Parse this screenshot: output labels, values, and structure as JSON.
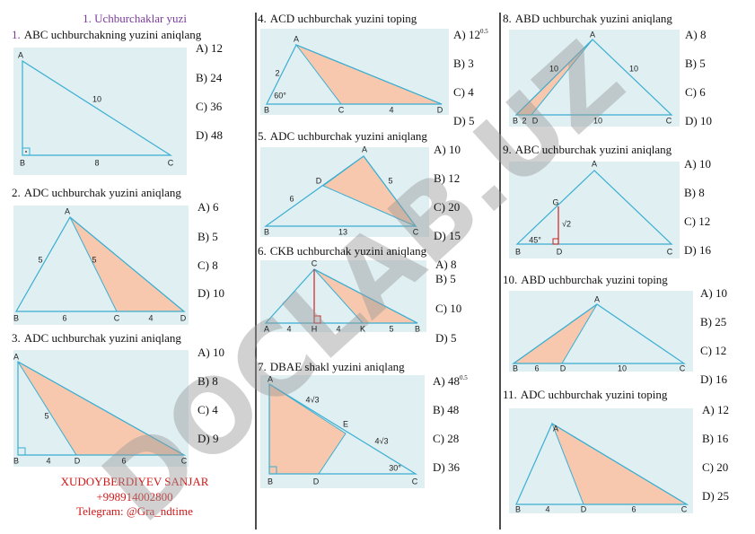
{
  "header": {
    "title": "1. Uchburchaklar yuzi"
  },
  "problems": [
    {
      "number": "1.",
      "question": "ABC uchburchakning yuzini aniqlang",
      "options": [
        "A) 12",
        "B) 24",
        "C) 36",
        "D) 48"
      ],
      "figure_labels": [
        "A",
        "B",
        "C",
        "10",
        "8"
      ]
    },
    {
      "number": "2.",
      "question": "ADC uchburchak yuzini aniqlang",
      "options": [
        "A) 6",
        "B) 5",
        "C) 8",
        "D) 10"
      ],
      "figure_labels": [
        "A",
        "B",
        "C",
        "D",
        "5",
        "5",
        "6",
        "4"
      ]
    },
    {
      "number": "3.",
      "question": "ADC uchburchak yuzini aniqlang",
      "options": [
        "A) 10",
        "B) 8",
        "C) 4",
        "D) 9"
      ],
      "figure_labels": [
        "A",
        "B",
        "D",
        "C",
        "5",
        "4",
        "6"
      ]
    },
    {
      "number": "4.",
      "question": "ACD uchburchak yuzini toping",
      "options": [
        {
          "text": "A) 12",
          "sup": "0.5"
        },
        "B) 3",
        "C) 4",
        "D) 5"
      ],
      "figure_labels": [
        "A",
        "B",
        "C",
        "D",
        "2",
        "60°",
        "4"
      ]
    },
    {
      "number": "5.",
      "question": "ADC uchburchak yuzini aniqlang",
      "options": [
        "A) 10",
        "B) 12",
        "C) 20",
        "D) 15"
      ],
      "figure_labels": [
        "A",
        "D",
        "B",
        "C",
        "6",
        "5",
        "13"
      ]
    },
    {
      "number": "6.",
      "question": "CKB uchburchak yuzini aniqlang",
      "options": [
        "A) 8",
        "B) 5",
        "C) 10",
        "D) 5"
      ],
      "figure_labels": [
        "C",
        "A",
        "H",
        "K",
        "B",
        "4",
        "4",
        "5"
      ]
    },
    {
      "number": "7.",
      "question": "DBAE shakl yuzini aniqlang",
      "options": [
        {
          "text": "A) 48",
          "sup": "0.5"
        },
        "B) 48",
        "C) 28",
        "D) 36"
      ],
      "figure_labels": [
        "A",
        "E",
        "4√3",
        "4√3",
        "30°",
        "B",
        "D",
        "C"
      ]
    },
    {
      "number": "8.",
      "question": "ABD uchburchak yuzini aniqlang",
      "options": [
        "A) 8",
        "B) 5",
        "C) 6",
        "D) 10"
      ],
      "figure_labels": [
        "A",
        "10",
        "10",
        "B",
        "2",
        "D",
        "10",
        "C"
      ]
    },
    {
      "number": "9.",
      "question": "ABC uchburchak yuzini aniqlang",
      "options": [
        "A) 10",
        "B) 8",
        "C) 12",
        "D) 16"
      ],
      "figure_labels": [
        "A",
        "G",
        "√2",
        "45°",
        "B",
        "D",
        "C"
      ]
    },
    {
      "number": "10.",
      "question": "ABD uchburchak yuzini toping",
      "options": [
        "A) 10",
        "B) 25",
        "C) 12",
        "D) 16"
      ],
      "figure_labels": [
        "A",
        "B",
        "6",
        "D",
        "10",
        "C"
      ]
    },
    {
      "number": "11.",
      "question": "ADC uchburchak yuzini toping",
      "options": [
        "A) 12",
        "B) 16",
        "C) 20",
        "D) 25"
      ],
      "figure_labels": [
        "A",
        "B",
        "4",
        "D",
        "6",
        "C"
      ]
    }
  ],
  "footer": {
    "author": "XUDOYBERDIYEV SANJAR",
    "phone": "+998914002800",
    "telegram": "Telegram: @Gra_ndtime"
  },
  "watermark": "DOCLAB.UZ"
}
